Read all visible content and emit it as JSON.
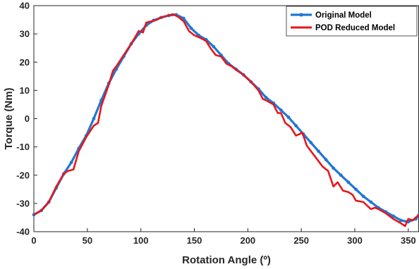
{
  "chart_data": {
    "type": "line",
    "title": "",
    "xlabel": "Rotation Angle (º)",
    "ylabel": "Torque (Nm)",
    "xlim": [
      0,
      360
    ],
    "ylim": [
      -40,
      40
    ],
    "xticks": [
      0,
      50,
      100,
      150,
      200,
      250,
      300,
      350
    ],
    "yticks": [
      40,
      30,
      20,
      10,
      0,
      -10,
      -20,
      -30,
      -40
    ],
    "grid": false,
    "legend": "top-right",
    "series": [
      {
        "name": "Original Model",
        "color": "#1f77d4",
        "marker": "dot",
        "x": [
          0,
          7,
          14,
          21,
          28,
          35,
          42,
          49,
          56,
          63,
          70,
          77,
          84,
          91,
          98,
          105,
          112,
          119,
          126,
          133,
          140,
          147,
          154,
          161,
          168,
          175,
          182,
          189,
          196,
          203,
          210,
          217,
          224,
          231,
          238,
          245,
          252,
          259,
          266,
          273,
          280,
          287,
          294,
          301,
          308,
          315,
          322,
          329,
          336,
          343,
          350,
          357,
          360
        ],
        "y": [
          -34,
          -32.5,
          -29.5,
          -24.5,
          -19.5,
          -15.5,
          -10.5,
          -6,
          0,
          6.5,
          12.5,
          17.5,
          22,
          26.5,
          30,
          33,
          34.8,
          35.8,
          36.5,
          36.8,
          35.5,
          32,
          29.5,
          28,
          25.5,
          22.5,
          19.5,
          17.5,
          15.5,
          13,
          10.5,
          7.5,
          5.5,
          3,
          0.5,
          -2.5,
          -5.5,
          -8.5,
          -11.5,
          -14.5,
          -17.5,
          -20,
          -22.5,
          -25,
          -27.5,
          -29.5,
          -31.5,
          -33,
          -34.5,
          -36,
          -36.5,
          -35.5,
          -34
        ]
      },
      {
        "name": "POD Reduced Model",
        "color": "#e8161b",
        "marker": "none",
        "x": [
          0,
          7,
          14,
          21,
          28,
          32,
          37,
          42,
          49,
          56,
          60,
          63,
          70,
          74,
          77,
          84,
          91,
          98,
          102,
          105,
          110,
          115,
          120,
          126,
          130,
          135,
          140,
          145,
          150,
          156,
          161,
          165,
          170,
          175,
          180,
          185,
          190,
          196,
          203,
          210,
          214,
          217,
          224,
          228,
          231,
          235,
          240,
          245,
          251,
          255,
          259,
          265,
          270,
          275,
          280,
          284,
          289,
          294,
          298,
          301,
          308,
          315,
          319,
          322,
          329,
          336,
          343,
          347,
          350,
          354,
          360
        ],
        "y": [
          -34,
          -32.5,
          -29.5,
          -24,
          -19.5,
          -18.5,
          -18,
          -11.5,
          -6.5,
          -2.5,
          -1.5,
          4.5,
          12,
          17,
          18.5,
          22.5,
          26.5,
          31,
          30.5,
          34,
          34.5,
          35,
          36,
          36.5,
          37,
          36,
          34.5,
          31,
          29.5,
          28.5,
          27.5,
          25,
          22.5,
          22,
          19.5,
          18.5,
          17,
          15.5,
          13,
          10,
          7,
          6.5,
          5,
          2,
          2,
          -1.5,
          -3,
          -6,
          -5,
          -9.5,
          -11.5,
          -14.5,
          -17,
          -18.5,
          -24,
          -22.5,
          -25.5,
          -26,
          -27,
          -29,
          -29.5,
          -32,
          -31.5,
          -32,
          -33.5,
          -35.5,
          -37,
          -38,
          -35.5,
          -36,
          -34
        ]
      }
    ]
  }
}
